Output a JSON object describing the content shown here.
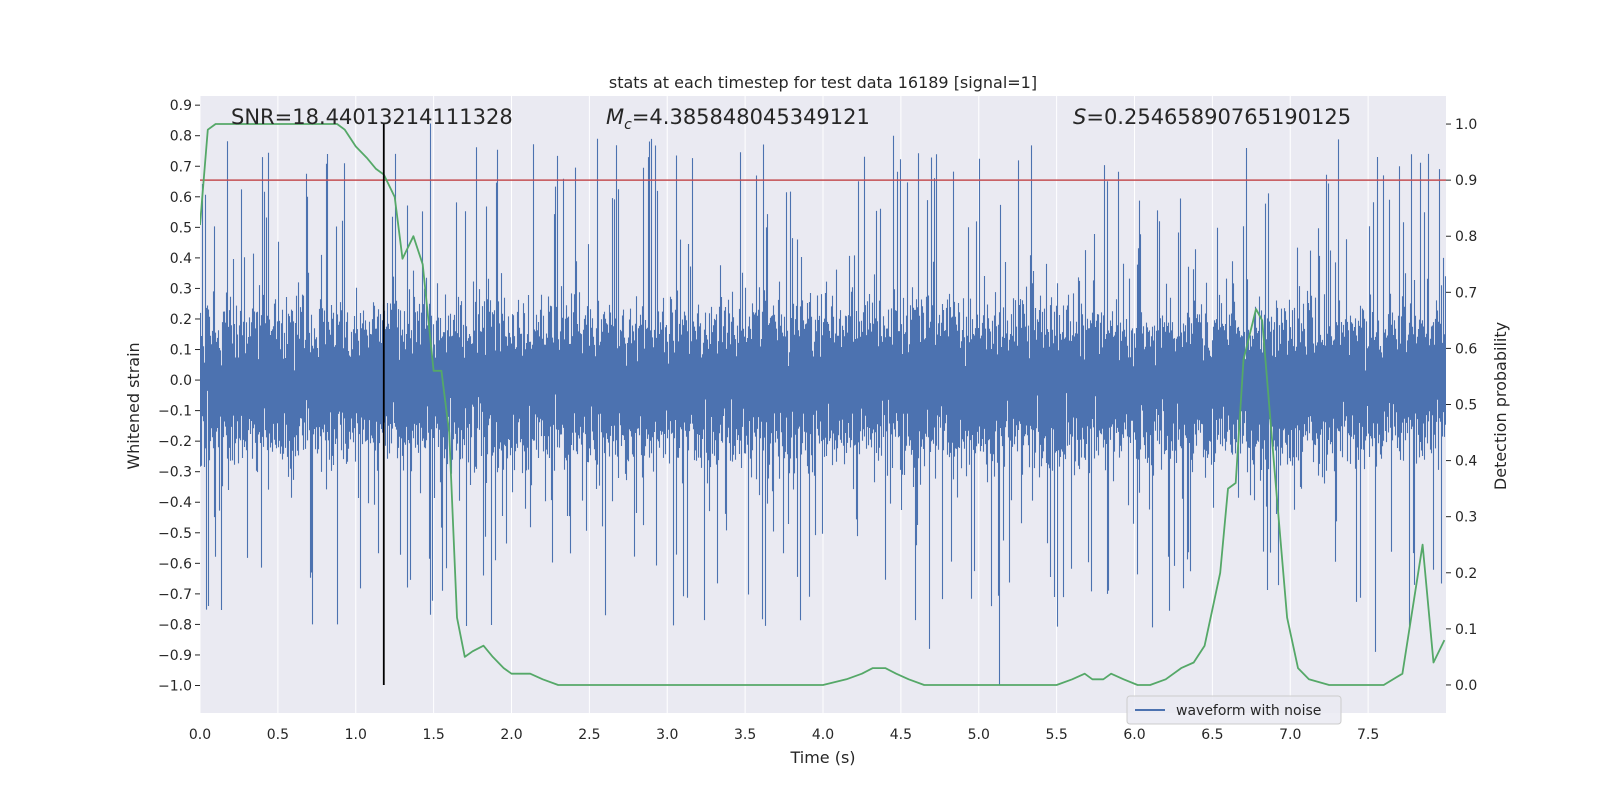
{
  "chart_data": {
    "type": "line",
    "title": "stats at each timestep for test data 16189 [signal=1]",
    "xlabel": "Time (s)",
    "ylabel": "Whitened strain",
    "y2label": "Detection probability",
    "xlim": [
      0.0,
      8.0
    ],
    "ylim": [
      -1.09,
      0.93
    ],
    "y2lim": [
      -0.05,
      1.05
    ],
    "x_ticks": [
      "0.0",
      "0.5",
      "1.0",
      "1.5",
      "2.0",
      "2.5",
      "3.0",
      "3.5",
      "4.0",
      "4.5",
      "5.0",
      "5.5",
      "6.0",
      "6.5",
      "7.0",
      "7.5"
    ],
    "y_ticks": [
      "0.9",
      "0.8",
      "0.7",
      "0.6",
      "0.5",
      "0.4",
      "0.3",
      "0.2",
      "0.1",
      "0.0",
      "−0.1",
      "−0.2",
      "−0.3",
      "−0.4",
      "−0.5",
      "−0.6",
      "−0.7",
      "−0.8",
      "−0.9",
      "−1.0"
    ],
    "y2_ticks": [
      "1.0",
      "0.9",
      "0.8",
      "0.7",
      "0.6",
      "0.5",
      "0.4",
      "0.3",
      "0.2",
      "0.1",
      "0.0"
    ],
    "annotations": {
      "snr": "SNR=18.44013214111328",
      "mc_symbol": "M",
      "mc_sub": "c",
      "mc_value": "=4.385848045349121",
      "s_symbol": "S",
      "s_value": "=0.25465890765190125"
    },
    "grid": true,
    "legend": {
      "position": "lower-right",
      "entries": [
        "waveform with noise"
      ]
    },
    "series": [
      {
        "name": "waveform with noise",
        "axis": "left",
        "color": "#4c72b0",
        "kind": "noisy-waveform",
        "duration": 8.0,
        "sample_rate": 2048,
        "typical_band": [
          -0.36,
          0.34
        ],
        "max": 0.84,
        "min": -1.0,
        "notable_peaks": [
          [
            1.48,
            0.84
          ],
          [
            4.45,
            0.8
          ],
          [
            2.55,
            0.79
          ],
          [
            0.4,
            0.73
          ],
          [
            0.82,
            0.74
          ],
          [
            7.7,
            0.7
          ]
        ],
        "notable_dips": [
          [
            5.13,
            -1.0
          ],
          [
            4.68,
            -0.88
          ],
          [
            7.55,
            -0.89
          ],
          [
            0.72,
            -0.8
          ],
          [
            0.88,
            -0.8
          ],
          [
            2.6,
            -0.77
          ]
        ]
      },
      {
        "name": "threshold",
        "axis": "right",
        "color": "#c44e52",
        "kind": "hline",
        "value": 0.9
      },
      {
        "name": "detection probability",
        "axis": "right",
        "color": "#55a868",
        "kind": "line",
        "x": [
          0.0,
          0.05,
          0.1,
          0.2,
          0.4,
          0.6,
          0.8,
          0.88,
          0.93,
          1.0,
          1.07,
          1.13,
          1.18,
          1.25,
          1.3,
          1.37,
          1.43,
          1.5,
          1.55,
          1.6,
          1.65,
          1.7,
          1.75,
          1.82,
          1.88,
          1.95,
          2.0,
          2.05,
          2.12,
          2.2,
          2.3,
          2.5,
          3.0,
          3.5,
          4.0,
          4.15,
          4.25,
          4.32,
          4.4,
          4.47,
          4.55,
          4.65,
          5.0,
          5.5,
          5.6,
          5.68,
          5.73,
          5.8,
          5.85,
          5.93,
          6.02,
          6.1,
          6.2,
          6.3,
          6.38,
          6.45,
          6.55,
          6.6,
          6.65,
          6.7,
          6.78,
          6.82,
          6.9,
          6.98,
          7.05,
          7.12,
          7.25,
          7.6,
          7.72,
          7.85,
          7.92,
          7.99
        ],
        "y": [
          0.82,
          0.99,
          1.0,
          1.0,
          1.0,
          1.0,
          1.0,
          1.0,
          0.99,
          0.96,
          0.94,
          0.92,
          0.91,
          0.87,
          0.76,
          0.8,
          0.75,
          0.56,
          0.56,
          0.45,
          0.12,
          0.05,
          0.06,
          0.07,
          0.05,
          0.03,
          0.02,
          0.02,
          0.02,
          0.01,
          0.0,
          0.0,
          0.0,
          0.0,
          0.0,
          0.01,
          0.02,
          0.03,
          0.03,
          0.02,
          0.01,
          0.0,
          0.0,
          0.0,
          0.01,
          0.02,
          0.01,
          0.01,
          0.02,
          0.01,
          0.0,
          0.0,
          0.01,
          0.03,
          0.04,
          0.07,
          0.2,
          0.35,
          0.36,
          0.58,
          0.67,
          0.65,
          0.38,
          0.12,
          0.03,
          0.01,
          0.0,
          0.0,
          0.02,
          0.25,
          0.04,
          0.08
        ]
      }
    ],
    "vline": {
      "x": 1.18,
      "color": "#000000"
    }
  }
}
